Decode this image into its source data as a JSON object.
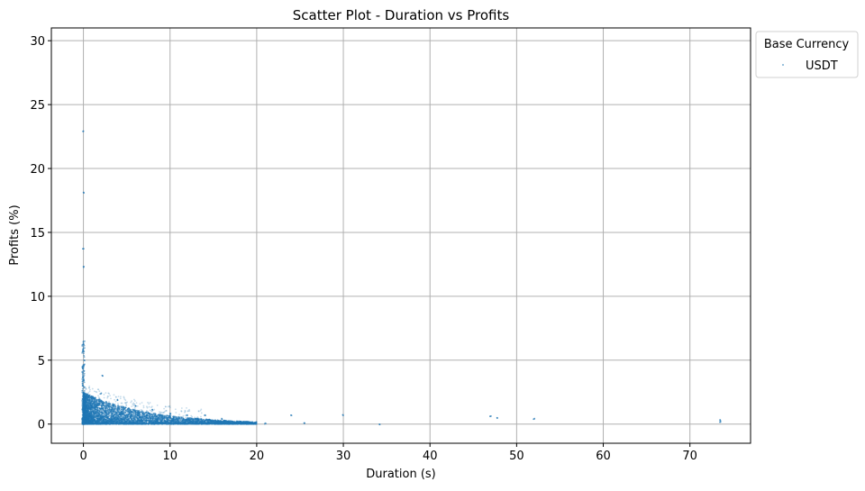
{
  "chart_data": {
    "type": "scatter",
    "title": "Scatter Plot - Duration vs Profits",
    "xlabel": "Duration (s)",
    "ylabel": "Profits (%)",
    "xlim": [
      -3.7,
      77.0
    ],
    "ylim": [
      -1.5,
      31.0
    ],
    "xticks": [
      0,
      10,
      20,
      30,
      40,
      50,
      60,
      70
    ],
    "yticks": [
      0,
      5,
      10,
      15,
      20,
      25,
      30
    ],
    "grid": true,
    "legend": {
      "title": "Base Currency",
      "placement": "outside-top-right",
      "entries": [
        "USDT"
      ]
    },
    "series": [
      {
        "name": "USDT",
        "color": "#1f77b4",
        "description_points": [
          {
            "x": 0,
            "y": 0
          },
          {
            "x": 0,
            "y": 1
          },
          {
            "x": 0,
            "y": 2
          },
          {
            "x": 0,
            "y": 3
          },
          {
            "x": 0,
            "y": 3.7
          },
          {
            "x": 0,
            "y": 5.7
          },
          {
            "x": 0,
            "y": 6.2
          },
          {
            "x": 0,
            "y": 12.3
          },
          {
            "x": 0,
            "y": 13.7
          },
          {
            "x": 0,
            "y": 18.1
          },
          {
            "x": 0,
            "y": 22.9
          },
          {
            "x": 2,
            "y": 2.4
          },
          {
            "x": 2.2,
            "y": 3.8
          },
          {
            "x": 4,
            "y": 1.9
          },
          {
            "x": 6,
            "y": 1.4
          },
          {
            "x": 8,
            "y": 1.1
          },
          {
            "x": 10,
            "y": 0.8
          },
          {
            "x": 12,
            "y": 0.7
          },
          {
            "x": 14,
            "y": 0.7
          },
          {
            "x": 16,
            "y": 0.4
          },
          {
            "x": 18,
            "y": 0.2
          },
          {
            "x": 21,
            "y": 0.05
          },
          {
            "x": 24,
            "y": 0.7
          },
          {
            "x": 25.5,
            "y": 0.05
          },
          {
            "x": 30,
            "y": 0.7
          },
          {
            "x": 34.2,
            "y": 0.0
          },
          {
            "x": 47,
            "y": 0.6
          },
          {
            "x": 47.8,
            "y": 0.5
          },
          {
            "x": 52,
            "y": 0.4
          },
          {
            "x": 73.5,
            "y": 0.3
          },
          {
            "x": 73.5,
            "y": 0.15
          }
        ]
      }
    ]
  }
}
